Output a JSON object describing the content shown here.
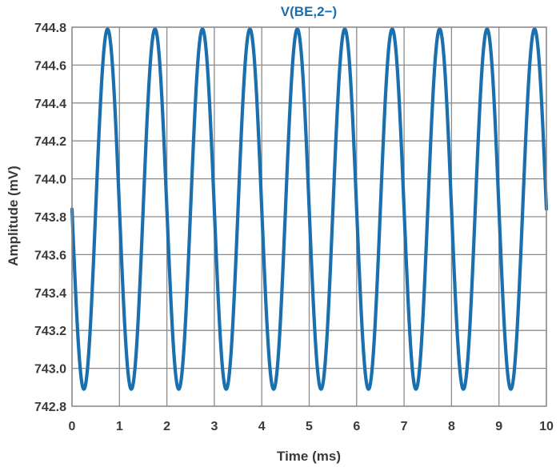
{
  "chart_data": {
    "type": "line",
    "title": "",
    "xlabel": "Time (ms)",
    "ylabel": "Amplitude (mV)",
    "xlim": [
      0,
      10
    ],
    "ylim": [
      742.8,
      744.8
    ],
    "x_ticks": [
      0,
      1,
      2,
      3,
      4,
      5,
      6,
      7,
      8,
      9,
      10
    ],
    "x_tick_labels": [
      "0",
      "1",
      "2",
      "3",
      "4",
      "5",
      "6",
      "7",
      "8",
      "9",
      "10"
    ],
    "y_ticks": [
      742.8,
      743.0,
      743.2,
      743.4,
      743.6,
      743.8,
      744.0,
      744.2,
      744.4,
      744.6,
      744.8
    ],
    "y_tick_labels": [
      "742.8",
      "743.0",
      "743.2",
      "743.4",
      "743.6",
      "743.8",
      "744.0",
      "744.2",
      "744.4",
      "744.6",
      "744.8"
    ],
    "grid": true,
    "legend": "top-center",
    "series": [
      {
        "name": "V(BE,2−)",
        "color": "#1a6faf",
        "waveform": "sine",
        "frequency_khz": 1.0,
        "min": 742.89,
        "max": 744.79,
        "start_value": 743.84,
        "initial_direction": "falling",
        "points": [
          {
            "x": 0.0,
            "y": 743.84
          },
          {
            "x": 0.25,
            "y": 742.89
          },
          {
            "x": 0.75,
            "y": 744.79
          },
          {
            "x": 1.25,
            "y": 742.89
          },
          {
            "x": 1.75,
            "y": 744.79
          },
          {
            "x": 2.25,
            "y": 742.89
          },
          {
            "x": 2.75,
            "y": 744.79
          },
          {
            "x": 3.25,
            "y": 742.89
          },
          {
            "x": 3.75,
            "y": 744.79
          },
          {
            "x": 4.25,
            "y": 742.89
          },
          {
            "x": 4.75,
            "y": 744.79
          },
          {
            "x": 5.25,
            "y": 742.89
          },
          {
            "x": 5.75,
            "y": 744.79
          },
          {
            "x": 6.25,
            "y": 742.89
          },
          {
            "x": 6.75,
            "y": 744.79
          },
          {
            "x": 7.25,
            "y": 742.89
          },
          {
            "x": 7.75,
            "y": 744.79
          },
          {
            "x": 8.25,
            "y": 742.89
          },
          {
            "x": 8.75,
            "y": 744.79
          },
          {
            "x": 9.25,
            "y": 742.89
          },
          {
            "x": 9.75,
            "y": 744.79
          },
          {
            "x": 10.0,
            "y": 743.84
          }
        ]
      }
    ],
    "colors": {
      "grid": "#8c8c8c",
      "frame": "#8c8c8c",
      "tick_text": "#3a3a3a",
      "axis_label": "#3a3a3a",
      "legend_text": "#1a6faf"
    }
  }
}
